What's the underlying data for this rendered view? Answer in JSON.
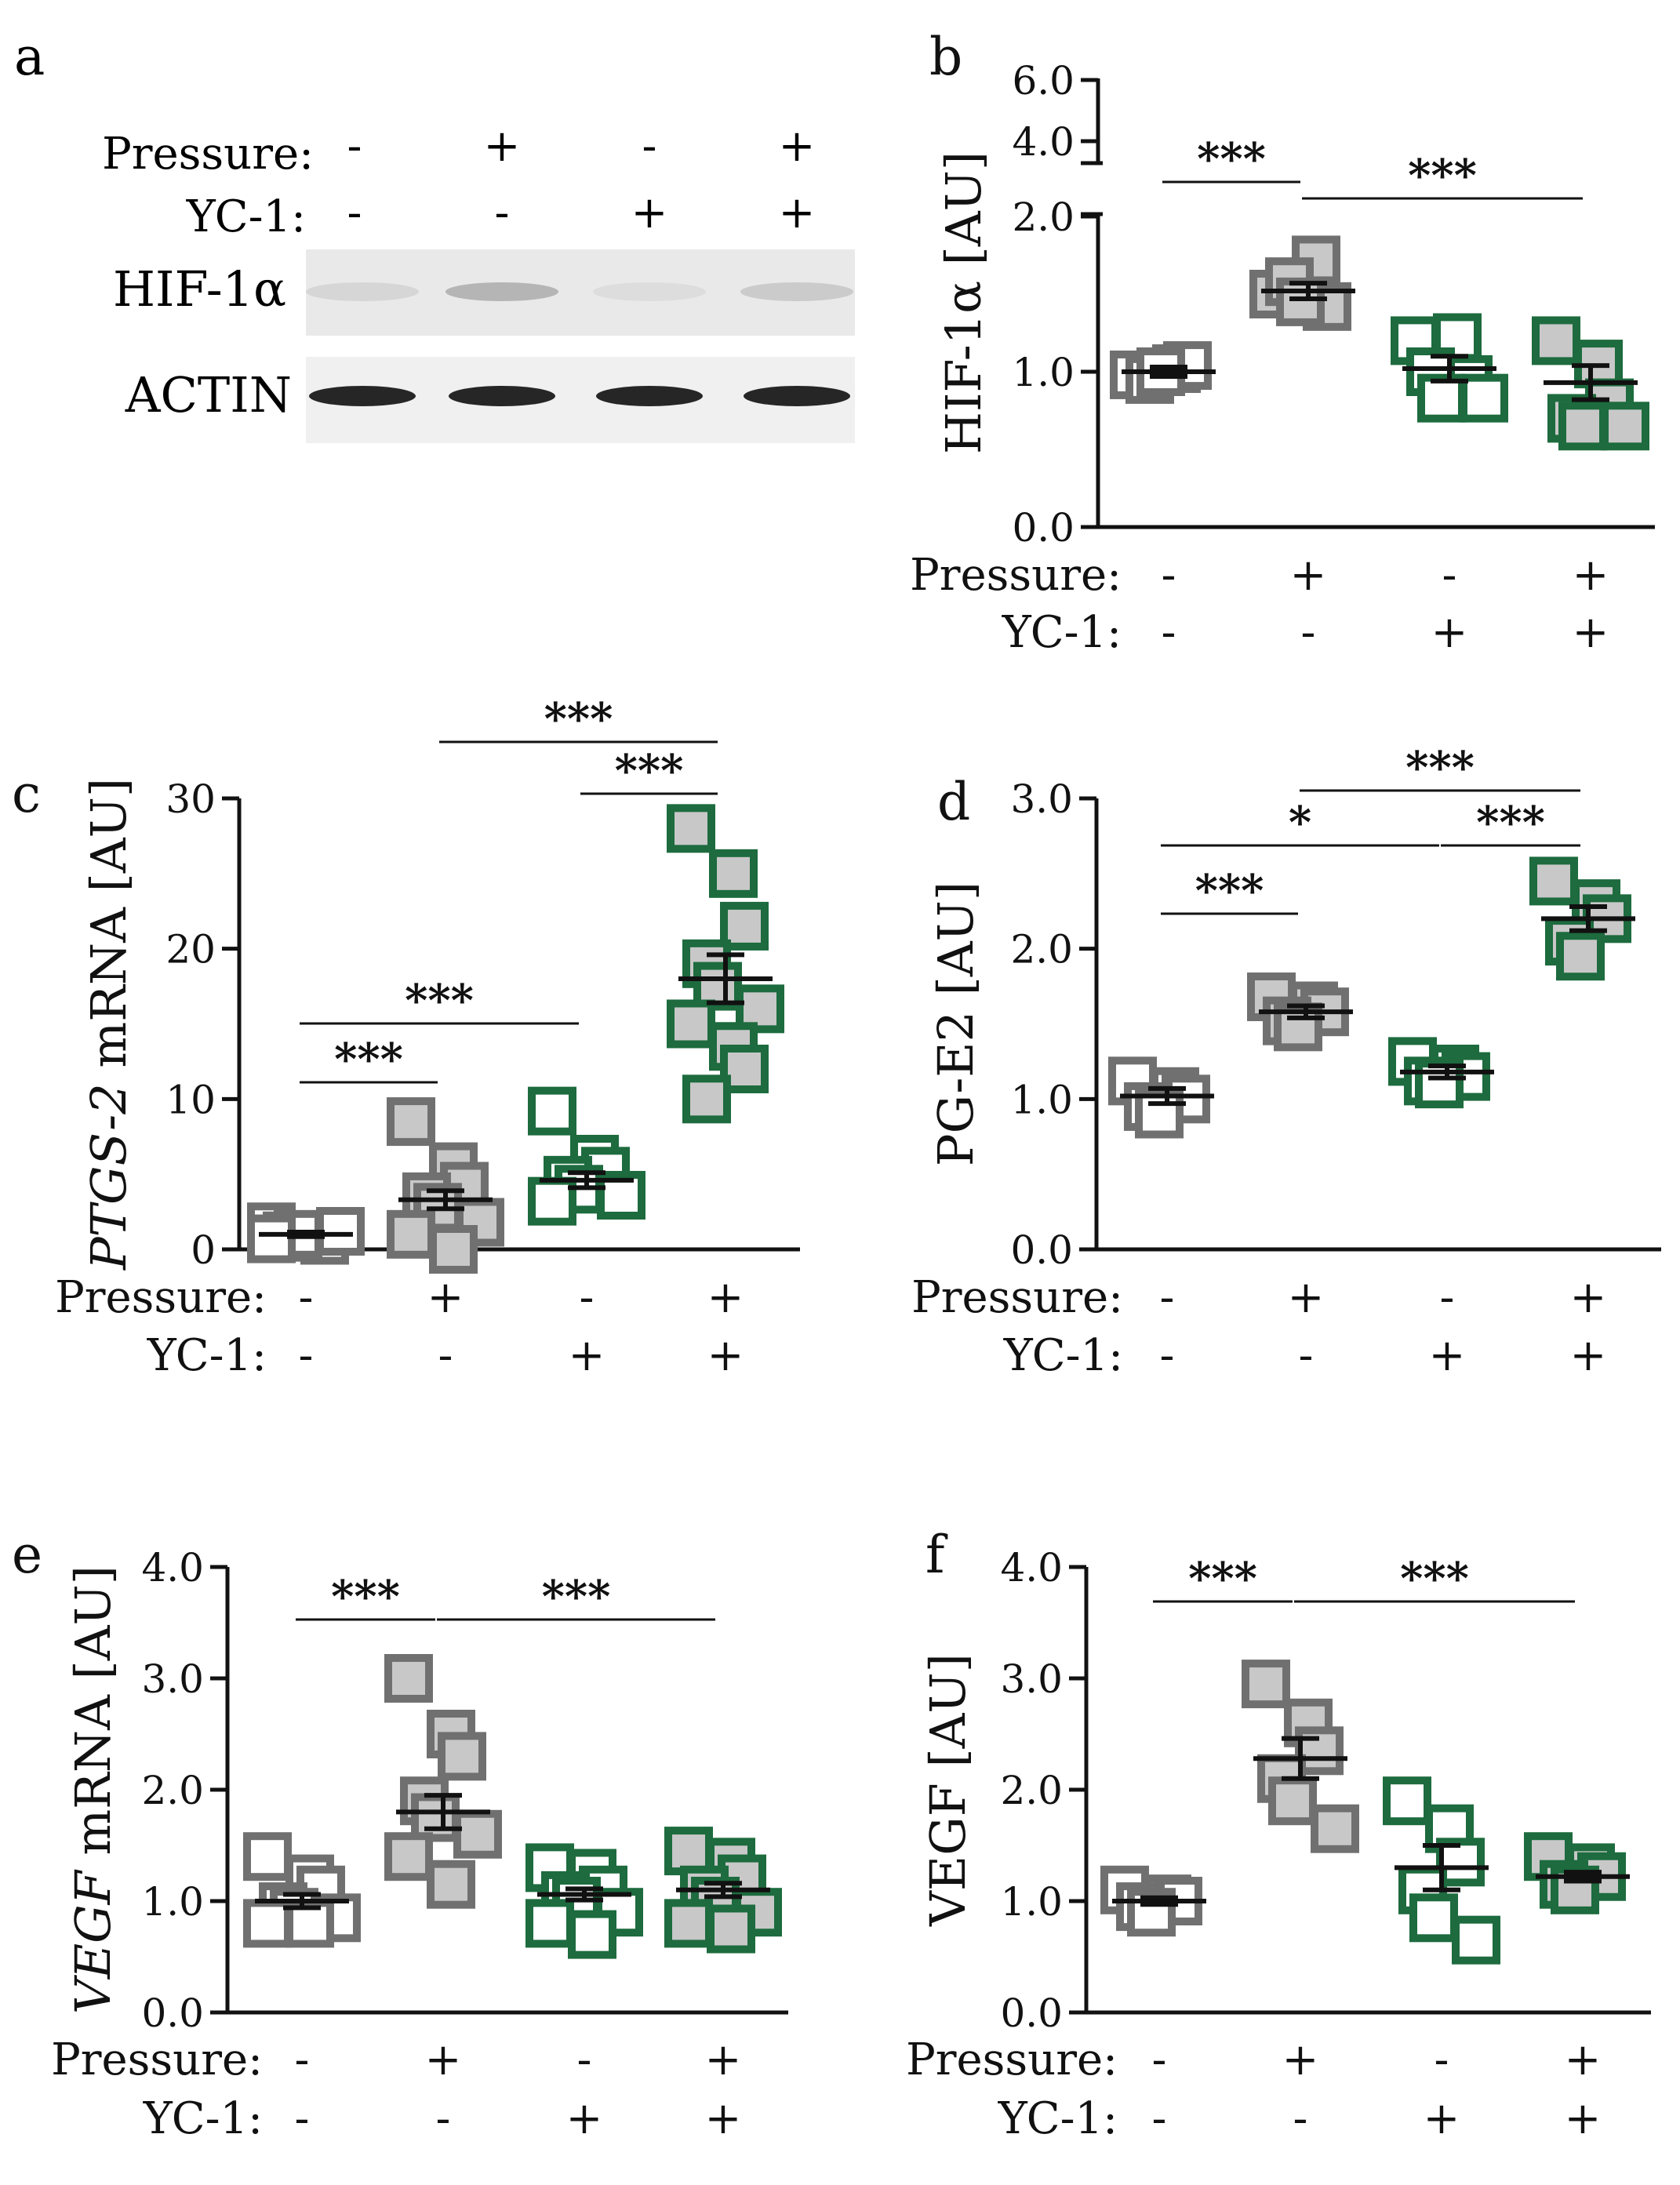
{
  "colors": {
    "black": "#111111",
    "gray_stroke": "#707070",
    "gray_fill": "#c8c8c8",
    "green_stroke": "#1d6b3e",
    "blot_bg": "#e9e9e9",
    "band_dark": "#1a1a1a"
  },
  "conditions": {
    "pressure_label": "Pressure:",
    "yc1_label": "YC-1:",
    "pressure": [
      "-",
      "+",
      "-",
      "+"
    ],
    "yc1": [
      "-",
      "-",
      "+",
      "+"
    ]
  },
  "western_blot": {
    "panel_letter": "a",
    "row_labels": [
      "HIF-1α",
      "ACTIN"
    ],
    "hif_band_intensity": [
      0.12,
      0.35,
      0.08,
      0.2
    ],
    "actin_band_intensity": [
      0.95,
      0.95,
      0.95,
      0.95
    ]
  },
  "chart_data": [
    {
      "panel_letter": "b",
      "type": "scatter",
      "title": "",
      "ylabel": "HIF-1α [AU]",
      "ylabel_italic": "",
      "ylim": [
        0,
        2.0
      ],
      "yticks": [
        0.0,
        1.0,
        2.0
      ],
      "ytick_labels": [
        "0.0",
        "1.0",
        "2.0"
      ],
      "broken_axis": {
        "upper_ticks": [
          4.0,
          6.0
        ],
        "upper_labels": [
          "4.0",
          "6.0"
        ]
      },
      "groups": [
        {
          "style": "gray_open",
          "mean": 1.0,
          "sem": 0.03,
          "points": [
            0.98,
            1.02,
            1.04,
            0.95,
            1.0
          ]
        },
        {
          "style": "gray_filled",
          "mean": 1.52,
          "sem": 0.05,
          "points": [
            1.5,
            1.72,
            1.42,
            1.58,
            1.45
          ]
        },
        {
          "style": "green_open",
          "mean": 1.02,
          "sem": 0.08,
          "points": [
            1.2,
            1.22,
            0.95,
            1.0,
            0.83,
            0.83
          ]
        },
        {
          "style": "green_filled",
          "mean": 0.93,
          "sem": 0.11,
          "points": [
            1.2,
            1.05,
            0.8,
            0.7,
            0.65,
            0.65
          ]
        }
      ],
      "significance": [
        {
          "from": 0,
          "to": 1,
          "label": "***"
        },
        {
          "from": 1,
          "to": 3,
          "label": "***"
        }
      ]
    },
    {
      "panel_letter": "c",
      "type": "scatter",
      "title": "",
      "ylabel": " mRNA [AU]",
      "ylabel_italic": "PTGS-2",
      "ylim": [
        0,
        30
      ],
      "yticks": [
        0,
        10,
        20,
        30
      ],
      "ytick_labels": [
        "0",
        "10",
        "20",
        "30"
      ],
      "groups": [
        {
          "style": "gray_open",
          "mean": 1.0,
          "sem": 0.15,
          "points": [
            1.5,
            0.8,
            0.6,
            0.9,
            1.0,
            1.2,
            0.7
          ]
        },
        {
          "style": "gray_filled",
          "mean": 3.3,
          "sem": 0.6,
          "points": [
            8.5,
            5.5,
            4.2,
            3.5,
            2.8,
            1.8,
            1.0,
            0.0
          ]
        },
        {
          "style": "green_open",
          "mean": 4.6,
          "sem": 0.5,
          "points": [
            9.2,
            6.0,
            5.2,
            4.6,
            4.0,
            3.6,
            3.2
          ]
        },
        {
          "style": "green_filled",
          "mean": 18.0,
          "sem": 1.6,
          "points": [
            28.0,
            25.0,
            21.5,
            19.0,
            17.5,
            16.0,
            15.0,
            13.5,
            12.0,
            10.0
          ]
        }
      ],
      "significance": [
        {
          "from": 0,
          "to": 1,
          "label": "***"
        },
        {
          "from": 0,
          "to": 2,
          "label": "***"
        },
        {
          "from": 2,
          "to": 3,
          "label": "***"
        },
        {
          "from": 1,
          "to": 3,
          "label": "***"
        }
      ]
    },
    {
      "panel_letter": "d",
      "type": "scatter",
      "title": "",
      "ylabel": "PG-E2 [AU]",
      "ylabel_italic": "",
      "ylim": [
        0,
        3.0
      ],
      "yticks": [
        0.0,
        1.0,
        2.0,
        3.0
      ],
      "ytick_labels": [
        "0.0",
        "1.0",
        "2.0",
        "3.0"
      ],
      "groups": [
        {
          "style": "gray_open",
          "mean": 1.02,
          "sem": 0.05,
          "points": [
            1.12,
            1.05,
            1.0,
            0.95,
            0.9
          ]
        },
        {
          "style": "gray_filled",
          "mean": 1.58,
          "sem": 0.04,
          "points": [
            1.68,
            1.62,
            1.58,
            1.52,
            1.48
          ]
        },
        {
          "style": "green_open",
          "mean": 1.18,
          "sem": 0.04,
          "points": [
            1.25,
            1.2,
            1.15,
            1.12,
            1.1
          ]
        },
        {
          "style": "green_filled",
          "mean": 2.2,
          "sem": 0.08,
          "points": [
            2.45,
            2.3,
            2.2,
            2.05,
            1.95
          ]
        }
      ],
      "significance": [
        {
          "from": 0,
          "to": 1,
          "label": "***"
        },
        {
          "from": 0,
          "to": 2,
          "label": "*"
        },
        {
          "from": 2,
          "to": 3,
          "label": "***"
        },
        {
          "from": 1,
          "to": 3,
          "label": "***"
        }
      ]
    },
    {
      "panel_letter": "e",
      "type": "scatter",
      "title": "",
      "ylabel": " mRNA [AU]",
      "ylabel_italic": "VEGF",
      "ylim": [
        0,
        4.0
      ],
      "yticks": [
        0.0,
        1.0,
        2.0,
        3.0,
        4.0
      ],
      "ytick_labels": [
        "0.0",
        "1.0",
        "2.0",
        "3.0",
        "4.0"
      ],
      "groups": [
        {
          "style": "gray_open",
          "mean": 1.0,
          "sem": 0.06,
          "points": [
            1.4,
            1.2,
            1.1,
            0.95,
            0.9,
            0.85,
            0.8,
            0.8
          ]
        },
        {
          "style": "gray_filled",
          "mean": 1.8,
          "sem": 0.15,
          "points": [
            3.0,
            2.5,
            2.3,
            1.9,
            1.75,
            1.6,
            1.4,
            1.15
          ]
        },
        {
          "style": "green_open",
          "mean": 1.06,
          "sem": 0.05,
          "points": [
            1.3,
            1.25,
            1.1,
            1.05,
            1.0,
            0.9,
            0.8,
            0.7
          ]
        },
        {
          "style": "green_filled",
          "mean": 1.1,
          "sem": 0.06,
          "points": [
            1.45,
            1.35,
            1.2,
            1.1,
            1.0,
            0.9,
            0.8,
            0.75
          ]
        }
      ],
      "significance": [
        {
          "from": 0,
          "to": 1,
          "label": "***"
        },
        {
          "from": 1,
          "to": 3,
          "label": "***"
        }
      ]
    },
    {
      "panel_letter": "f",
      "type": "scatter",
      "title": "",
      "ylabel": "VEGF [AU]",
      "ylabel_italic": "",
      "ylim": [
        0,
        4.0
      ],
      "yticks": [
        0.0,
        1.0,
        2.0,
        3.0,
        4.0
      ],
      "ytick_labels": [
        "0.0",
        "1.0",
        "2.0",
        "3.0",
        "4.0"
      ],
      "groups": [
        {
          "style": "gray_open",
          "mean": 1.0,
          "sem": 0.03,
          "points": [
            1.1,
            1.02,
            1.0,
            0.95,
            0.9
          ]
        },
        {
          "style": "gray_filled",
          "mean": 2.28,
          "sem": 0.18,
          "points": [
            2.95,
            2.6,
            2.35,
            2.1,
            1.9,
            1.65
          ]
        },
        {
          "style": "green_open",
          "mean": 1.3,
          "sem": 0.2,
          "points": [
            1.9,
            1.65,
            1.35,
            1.1,
            0.85,
            0.65
          ]
        },
        {
          "style": "green_filled",
          "mean": 1.22,
          "sem": 0.04,
          "points": [
            1.4,
            1.3,
            1.22,
            1.15,
            1.1
          ]
        }
      ],
      "significance": [
        {
          "from": 0,
          "to": 1,
          "label": "***"
        },
        {
          "from": 1,
          "to": 3,
          "label": "***"
        }
      ]
    }
  ]
}
